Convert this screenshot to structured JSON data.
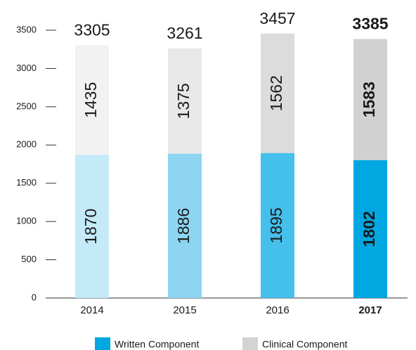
{
  "chart_data": {
    "type": "stacked_bar",
    "categories": [
      "2014",
      "2015",
      "2016",
      "2017"
    ],
    "emphasis": [
      false,
      false,
      false,
      true
    ],
    "series": [
      {
        "name": "Written Component",
        "color": "#00a7e1",
        "colors": [
          "#c4e9f8",
          "#8dd5f1",
          "#45bfeb",
          "#00a7e1"
        ],
        "values": [
          1870,
          1886,
          1895,
          1802
        ]
      },
      {
        "name": "Clinical Component",
        "color": "#d3d3d3",
        "colors": [
          "#f2f2f2",
          "#e8e8e8",
          "#dcdcdc",
          "#d1d1d1"
        ],
        "values": [
          1435,
          1375,
          1562,
          1583
        ]
      }
    ],
    "totals": [
      3305,
      3261,
      3457,
      3385
    ],
    "ylim": [
      0,
      3500
    ],
    "yticks": [
      0,
      500,
      1000,
      1500,
      2000,
      2500,
      3000,
      3500
    ]
  }
}
